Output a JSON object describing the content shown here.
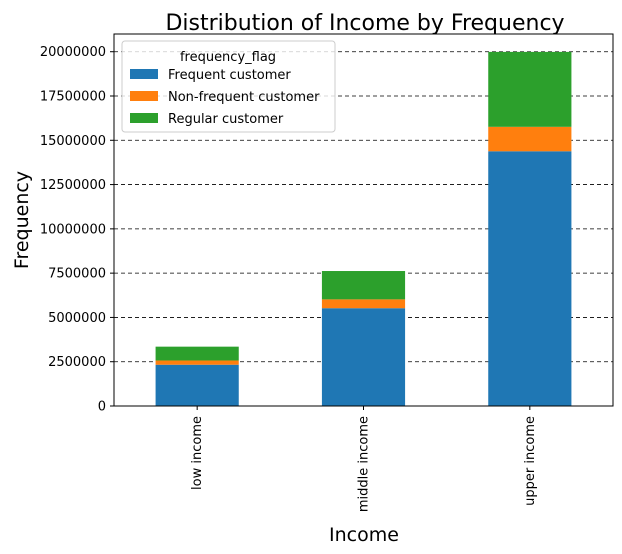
{
  "chart_data": {
    "type": "bar",
    "stacked": true,
    "title": "Distribution of Income by Frequency",
    "xlabel": "Income",
    "ylabel": "Frequency",
    "categories": [
      "low income",
      "middle income",
      "upper income"
    ],
    "series": [
      {
        "name": "Frequent customer",
        "color": "#1f77b4",
        "values": [
          2330000,
          5520000,
          14380000
        ]
      },
      {
        "name": "Non-frequent customer",
        "color": "#ff7f0e",
        "values": [
          240000,
          500000,
          1380000
        ]
      },
      {
        "name": "Regular customer",
        "color": "#2ca02c",
        "values": [
          780000,
          1600000,
          4230000
        ]
      }
    ],
    "ylim": [
      0,
      21000000
    ],
    "yticks": [
      0,
      2500000,
      5000000,
      7500000,
      10000000,
      12500000,
      15000000,
      17500000,
      20000000
    ],
    "ytick_labels": [
      "0",
      "2500000",
      "5000000",
      "7500000",
      "10000000",
      "12500000",
      "15000000",
      "17500000",
      "20000000"
    ],
    "grid": "y-dashed",
    "legend": {
      "title": "frequency_flag",
      "placement": "top-left"
    }
  }
}
